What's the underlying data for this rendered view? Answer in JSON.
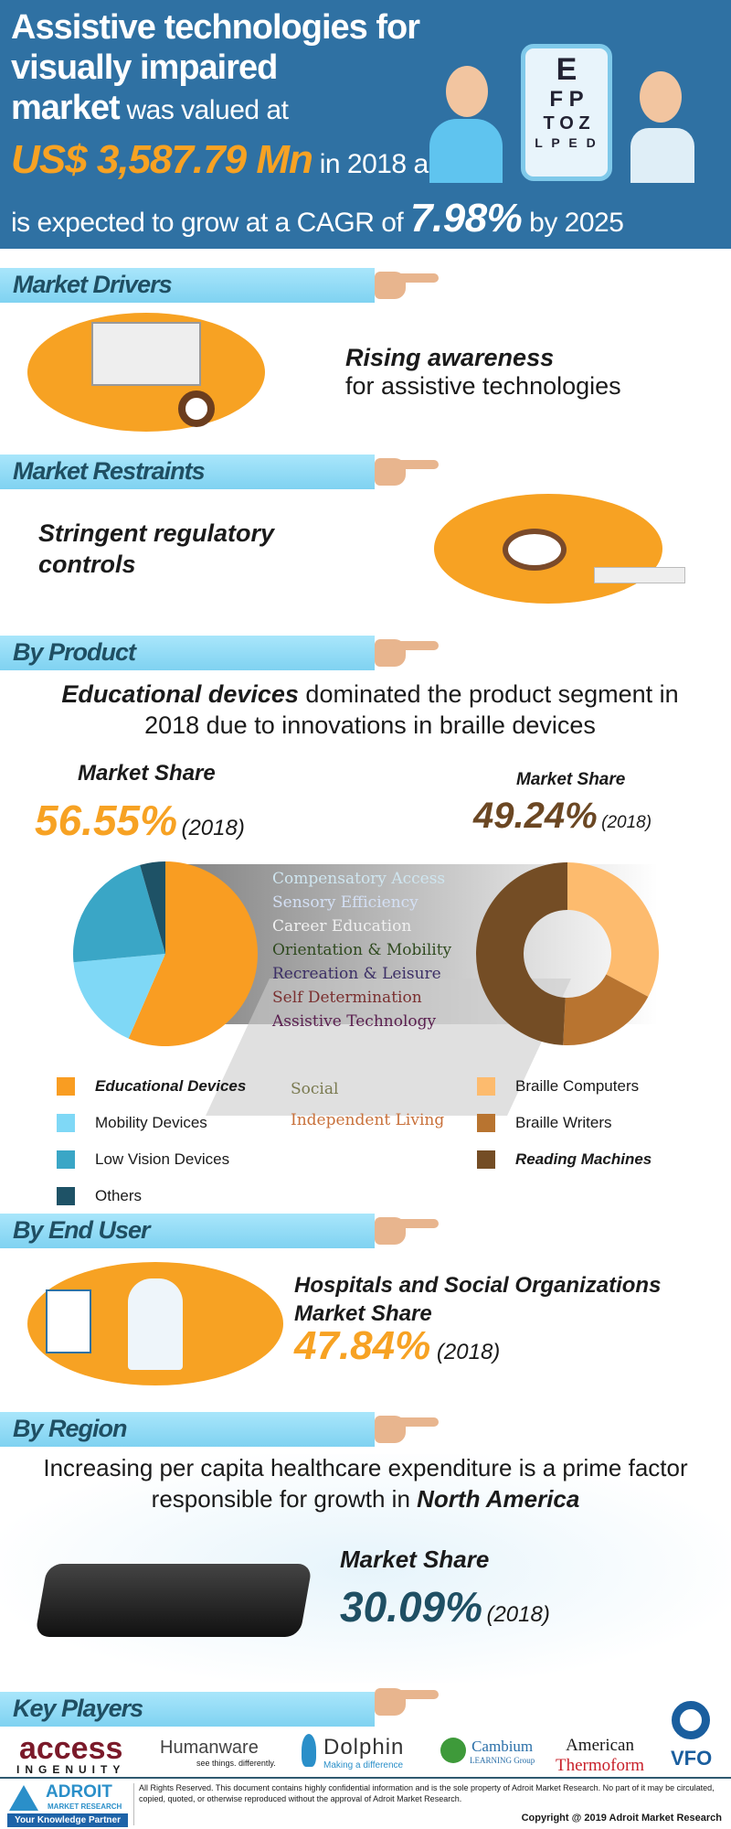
{
  "header": {
    "title_line1": "Assistive technologies for",
    "title_line2": "visually impaired",
    "title_market": "market",
    "valued": " was valued at",
    "value": "US$ 3,587.79 Mn",
    "in_year": " in 2018 and",
    "cagr_prefix": "is expected to grow at a CAGR of ",
    "cagr": "7.98%",
    "cagr_suffix": " by 2025",
    "eye_chart": [
      "E",
      "F P",
      "T O Z",
      "L P E D"
    ]
  },
  "drivers": {
    "label": "Market Drivers",
    "text_bold": "Rising awareness",
    "text": "for assistive technologies"
  },
  "restraints": {
    "label": "Market Restraints",
    "text": "Stringent regulatory controls"
  },
  "product": {
    "label": "By Product",
    "headline_bold": "Educational devices",
    "headline": " dominated the product segment in 2018 due to innovations in braille devices",
    "left_label": "Market Share",
    "left_value": "56.55%",
    "left_year": "(2018)",
    "right_label": "Market Share",
    "right_value": "49.24%",
    "right_year": "(2018)",
    "decor_words": [
      "Compensatory Access",
      "Sensory Efficiency",
      "Career Education",
      "Orientation & Mobility",
      "Recreation & Leisure",
      "Self Determination",
      "Assistive Technology",
      "Social",
      "Independent Living"
    ]
  },
  "chart_data": [
    {
      "type": "pie",
      "series": [
        {
          "name": "Educational Devices",
          "value": 56.55,
          "color": "#f99d22"
        },
        {
          "name": "Mobility Devices",
          "value": 17,
          "color": "#7fd8f6"
        },
        {
          "name": "Low Vision Devices",
          "value": 22,
          "color": "#3aa6c6"
        },
        {
          "name": "Others",
          "value": 4.45,
          "color": "#1e5266"
        }
      ]
    },
    {
      "type": "donut",
      "series": [
        {
          "name": "Braille Computers",
          "value": 32.76,
          "color": "#fdbb6e"
        },
        {
          "name": "Braille Writers",
          "value": 18,
          "color": "#b87430"
        },
        {
          "name": "Reading Machines",
          "value": 49.24,
          "color": "#744d25"
        }
      ]
    }
  ],
  "end_user": {
    "label": "By End User",
    "title1": "Hospitals and Social Organizations",
    "title2": "Market Share",
    "value": "47.84%",
    "year": "(2018)"
  },
  "region": {
    "label": "By Region",
    "headline": "Increasing per capita healthcare expenditure is a prime factor responsible for growth in ",
    "headline_bold": "North America",
    "share_label": "Market Share",
    "value": "30.09%",
    "year": "(2018)"
  },
  "key_players": {
    "label": "Key Players",
    "logos": [
      {
        "name": "access",
        "sub": "INGENUITY"
      },
      {
        "name": "Humanware",
        "sub": "see things. differently."
      },
      {
        "name": "Dolphin",
        "sub": "Making a difference"
      },
      {
        "name": "Cambium",
        "sub": "LEARNING Group"
      },
      {
        "name": "American",
        "sub": "Thermoform"
      },
      {
        "name": "VFO",
        "sub": ""
      }
    ]
  },
  "footer": {
    "brand": "ADROIT",
    "brand_sub": "MARKET RESEARCH",
    "tagline": "Your Knowledge Partner",
    "notice": "All Rights Reserved. This document contains highly confidential information and is the sole property of Adroit Market Research. No part of it may be circulated, copied, quoted, or otherwise reproduced without the approval of Adroit Market Research.",
    "copyright": "Copyright @ 2019 Adroit Market Research"
  }
}
